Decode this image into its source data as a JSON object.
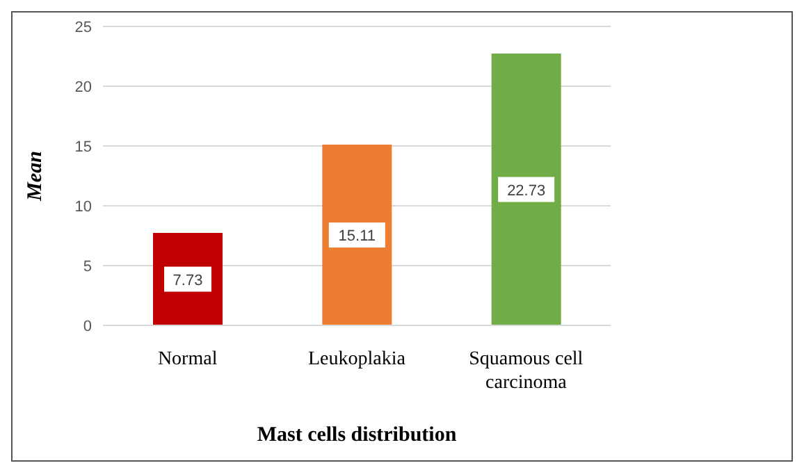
{
  "chart_data": {
    "type": "bar",
    "xlabel": "Mast cells distribution",
    "ylabel": "Mean",
    "categories": [
      "Normal",
      "Leukoplakia",
      "Squamous cell carcinoma"
    ],
    "values": [
      7.73,
      15.11,
      22.73
    ],
    "colors": [
      "#c00000",
      "#ed7d31",
      "#70ad47"
    ],
    "ylim": [
      0,
      25
    ],
    "yticks": [
      0,
      5,
      10,
      15,
      20,
      25
    ],
    "grid": "y",
    "data_labels": true
  }
}
